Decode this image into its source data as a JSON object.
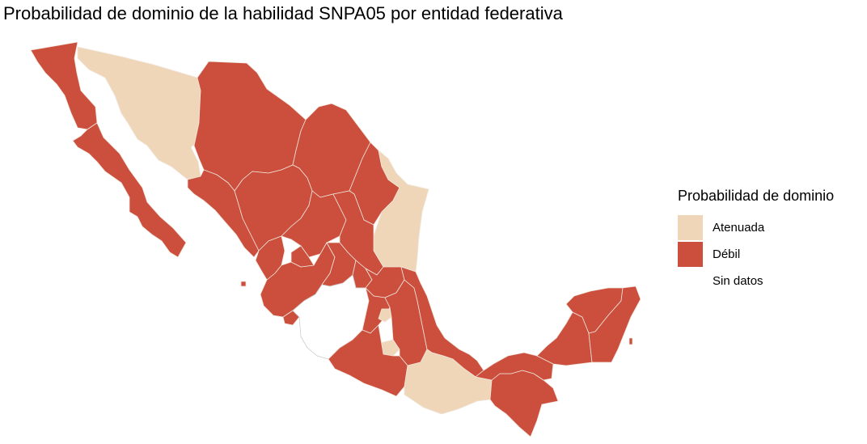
{
  "title": "Probabilidad de dominio de la habilidad SNPA05 por entidad federativa",
  "legend": {
    "title": "Probabilidad de dominio",
    "items": [
      {
        "label": "Atenuada",
        "color": "#efd6b8"
      },
      {
        "label": "Débil",
        "color": "#cc4e3c"
      },
      {
        "label": "Sin datos",
        "color": "#ffffff"
      }
    ]
  },
  "map_data": {
    "Baja California": "Débil",
    "Baja California Sur": "Débil",
    "Sonora": "Atenuada",
    "Chihuahua": "Débil",
    "Coahuila": "Débil",
    "Nuevo León": "Débil",
    "Tamaulipas": "Atenuada",
    "Sinaloa": "Débil",
    "Durango": "Débil",
    "Zacatecas": "Débil",
    "San Luis Potosí": "Débil",
    "Nayarit": "Débil",
    "Jalisco": "Débil",
    "Aguascalientes": "Débil",
    "Guanajuato": "Débil",
    "Querétaro": "Débil",
    "Hidalgo": "Débil",
    "Colima": "Débil",
    "Michoacán": "Sin datos",
    "Estado de México": "Débil",
    "Ciudad de México": "Atenuada",
    "Tlaxcala": "Atenuada",
    "Morelos": "Atenuada",
    "Puebla": "Débil",
    "Veracruz": "Débil",
    "Guerrero": "Débil",
    "Oaxaca": "Atenuada",
    "Chiapas": "Débil",
    "Tabasco": "Débil",
    "Campeche": "Débil",
    "Yucatán": "Débil",
    "Quintana Roo": "Débil"
  }
}
